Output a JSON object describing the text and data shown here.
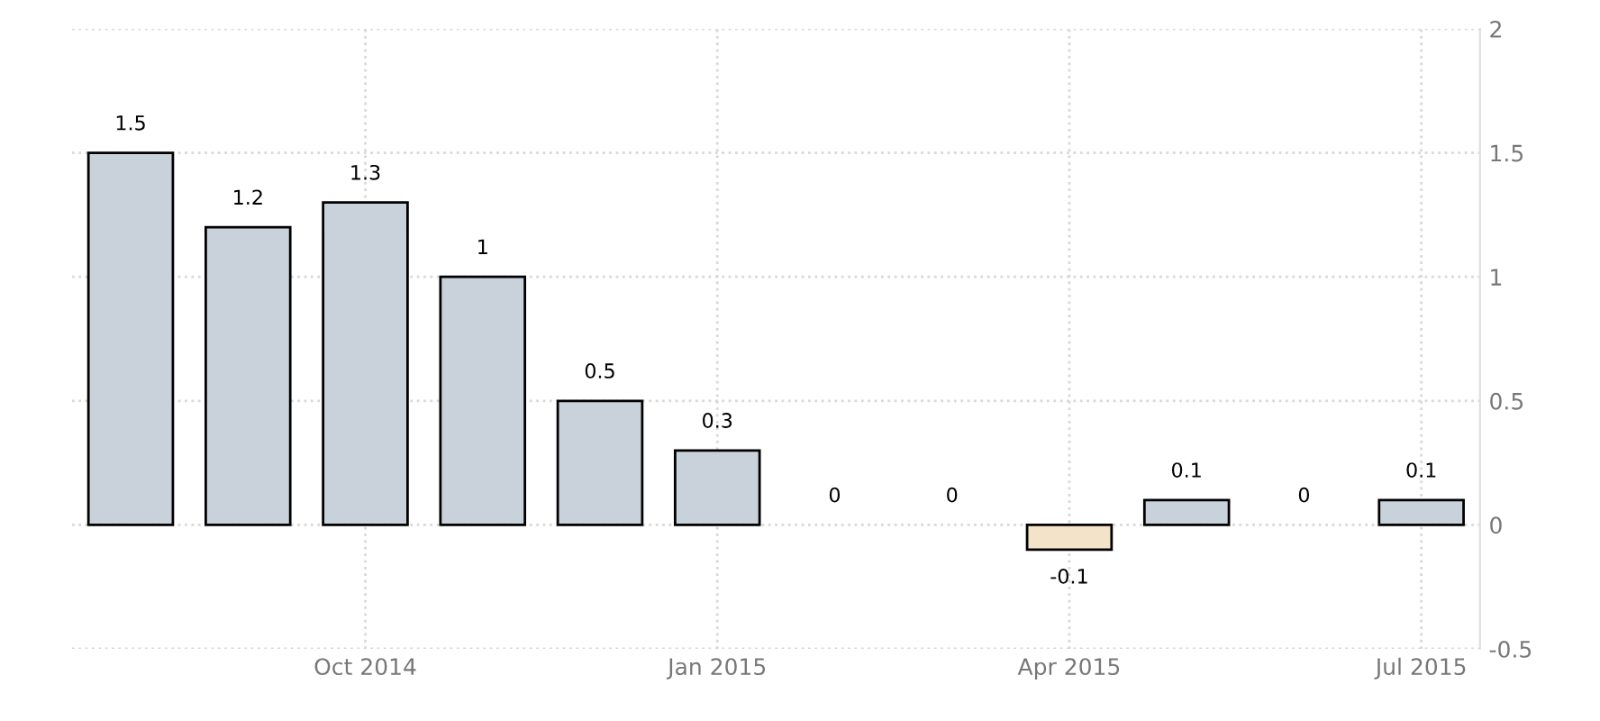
{
  "chart_data": {
    "type": "bar",
    "categories": [
      null,
      null,
      "Oct 2014",
      null,
      null,
      "Jan 2015",
      null,
      null,
      "Apr 2015",
      null,
      null,
      "Jul 2015"
    ],
    "values": [
      1.5,
      1.2,
      1.3,
      1,
      0.5,
      0.3,
      0,
      0,
      -0.1,
      0.1,
      0,
      0.1
    ],
    "colors": [
      "#c9d1da",
      "#c9d1da",
      "#c9d1da",
      "#c9d1da",
      "#c9d1da",
      "#c9d1da",
      "#c9d1da",
      "#c9d1da",
      "#f3e3c8",
      "#c9d1da",
      "#c9d1da",
      "#c9d1da"
    ],
    "ylim": [
      -0.5,
      2
    ],
    "yticks": [
      -0.5,
      0,
      0.5,
      1,
      1.5,
      2
    ],
    "grid": true,
    "data_labels": true
  }
}
